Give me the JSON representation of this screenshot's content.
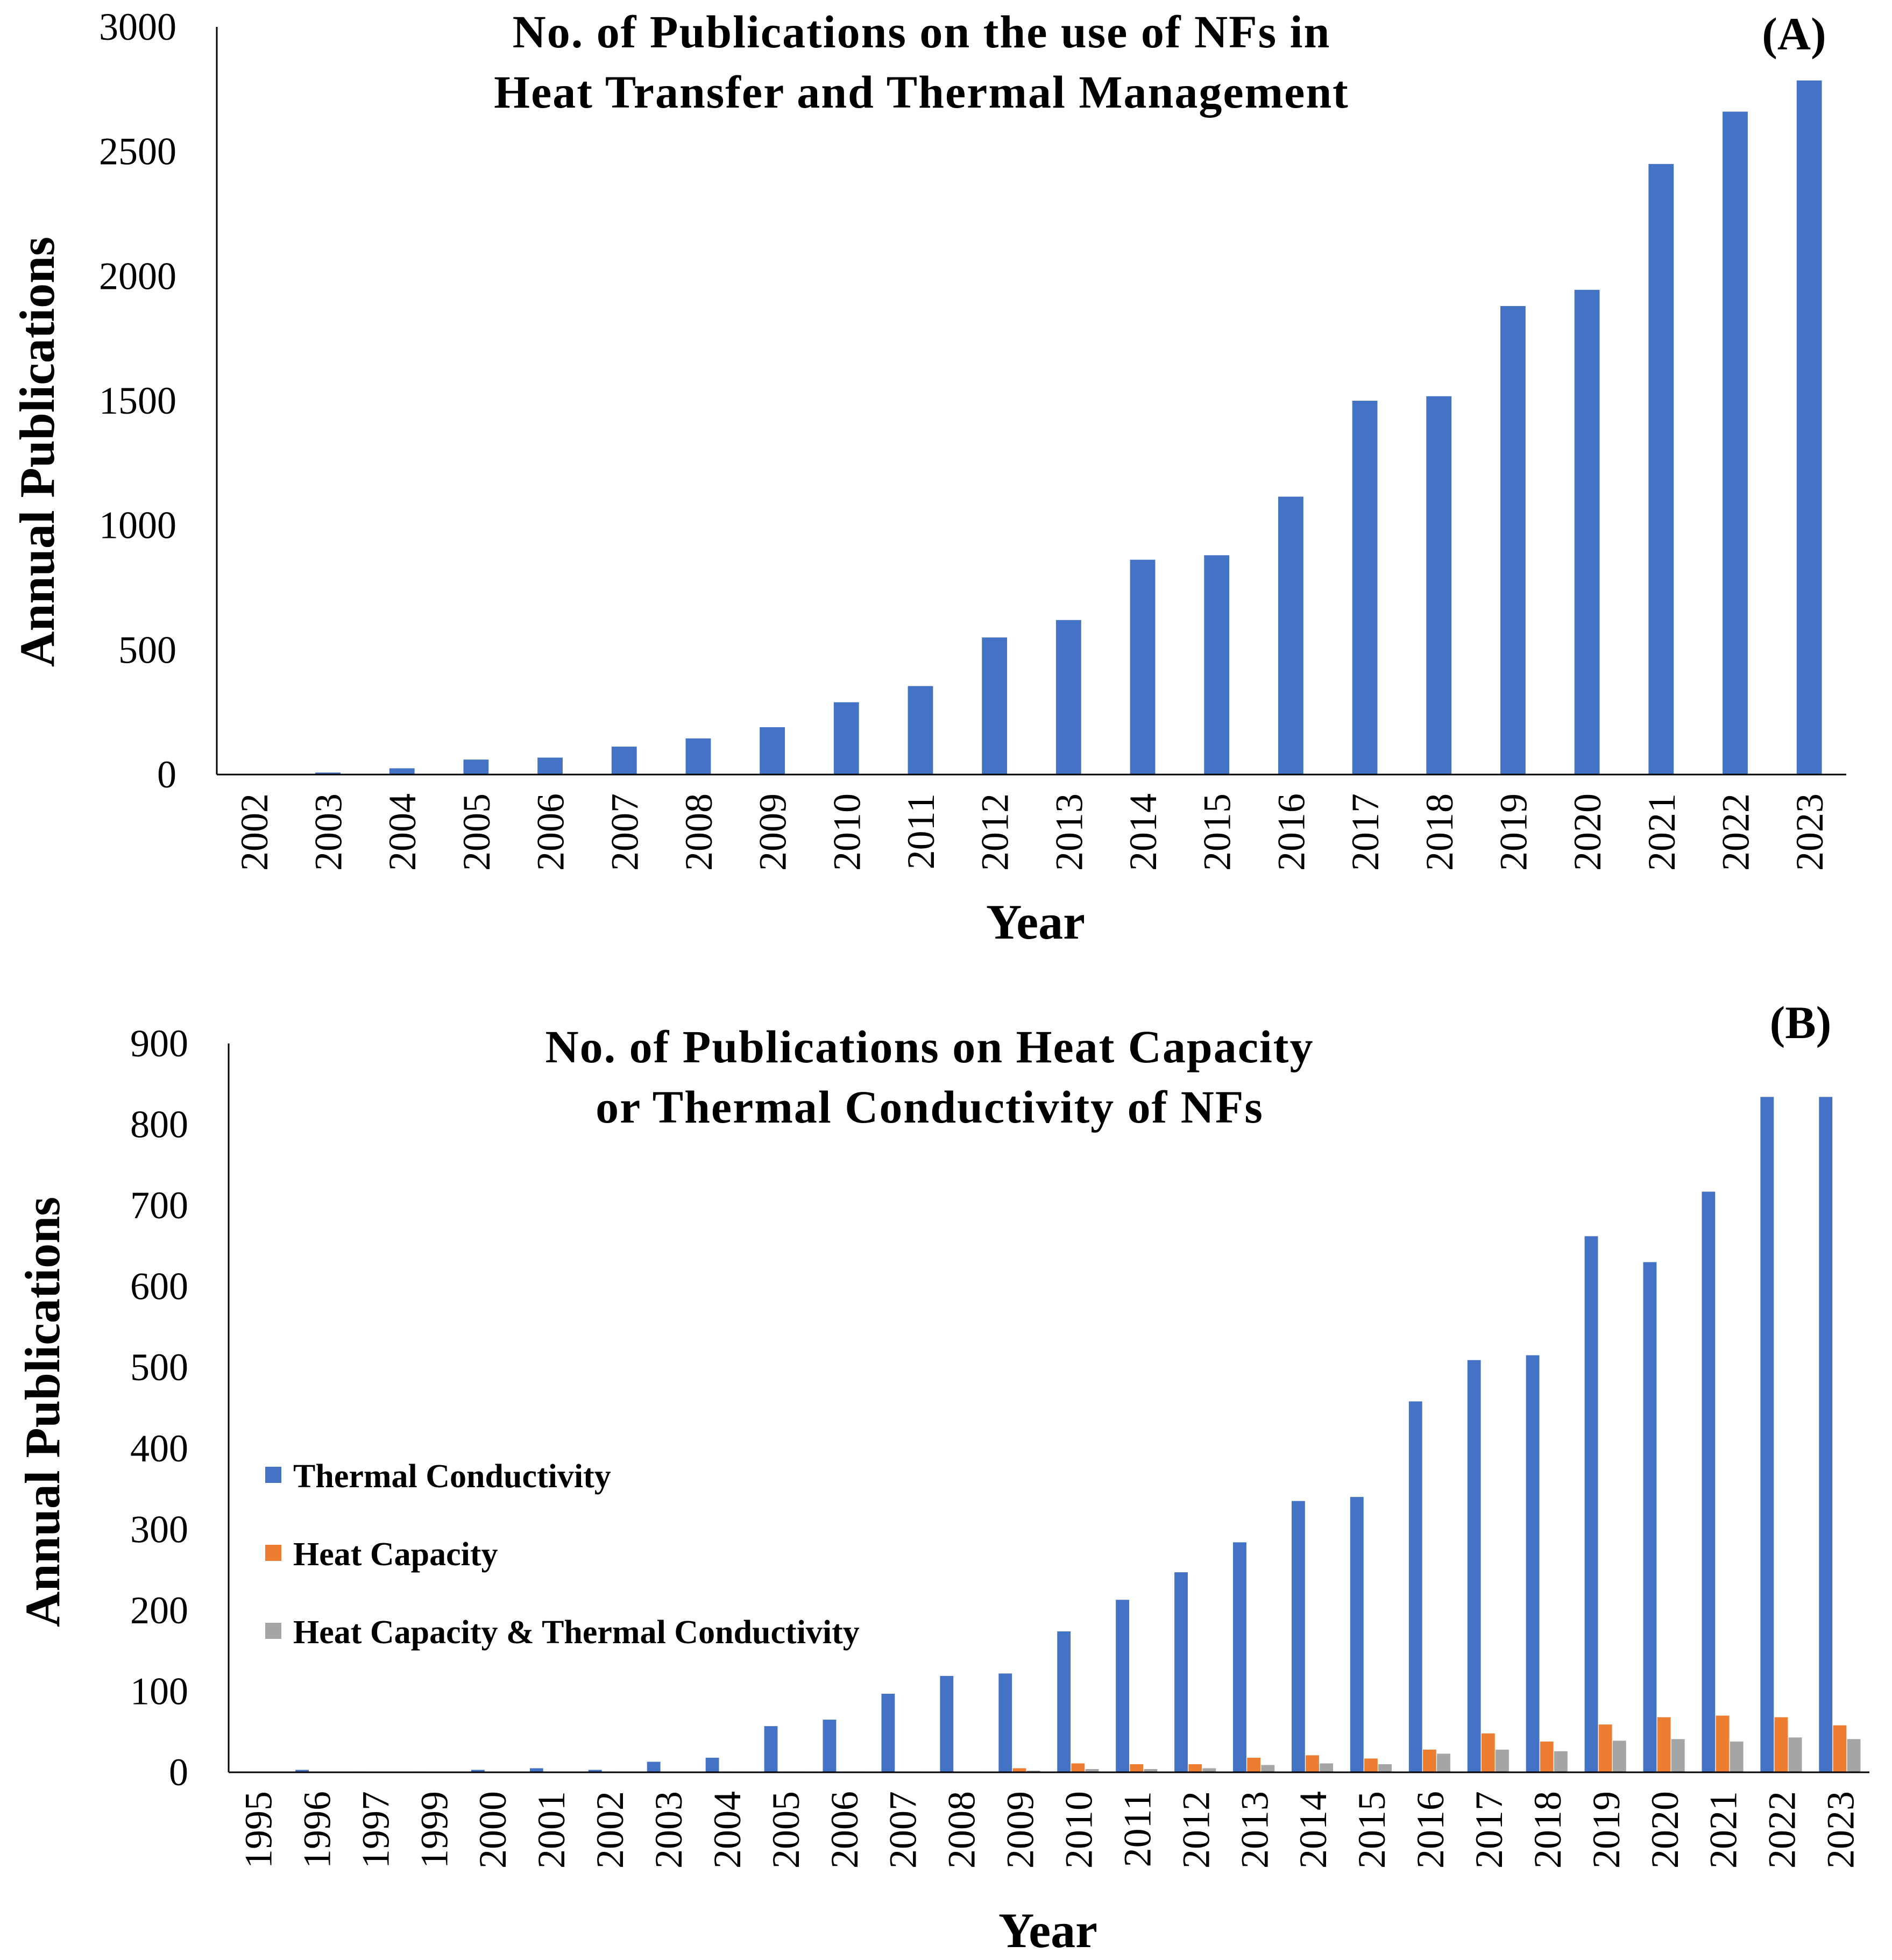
{
  "colors": {
    "thermal_conductivity": "#4472C4",
    "heat_capacity": "#ED7D31",
    "both": "#A5A5A5"
  },
  "chart_data": [
    {
      "type": "bar",
      "panel_label": "(A)",
      "title_line1": "No. of Publications on the use of NFs in",
      "title_line2": "Heat Transfer and Thermal Management",
      "xlabel": "Year",
      "ylabel": "Annual Publications",
      "ylim": [
        0,
        3000
      ],
      "yticks": [
        "0",
        "500",
        "1000",
        "1500",
        "2000",
        "2500",
        "3000"
      ],
      "categories": [
        "2002",
        "2003",
        "2004",
        "2005",
        "2006",
        "2007",
        "2008",
        "2009",
        "2010",
        "2011",
        "2012",
        "2013",
        "2014",
        "2015",
        "2016",
        "2017",
        "2018",
        "2019",
        "2020",
        "2021",
        "2022",
        "2023"
      ],
      "values": [
        2,
        8,
        25,
        60,
        68,
        112,
        145,
        190,
        290,
        355,
        550,
        620,
        862,
        880,
        1115,
        1500,
        1518,
        1880,
        1945,
        2450,
        2660,
        2785
      ]
    },
    {
      "type": "bar",
      "panel_label": "(B)",
      "title_line1": "No. of Publications on Heat Capacity",
      "title_line2": "or Thermal Conductivity of NFs",
      "xlabel": "Year",
      "ylabel": "Annual Publications",
      "ylim": [
        0,
        900
      ],
      "yticks": [
        "0",
        "100",
        "200",
        "300",
        "400",
        "500",
        "600",
        "700",
        "800",
        "900"
      ],
      "legend_position": "left",
      "categories": [
        "1995",
        "1996",
        "1997",
        "1999",
        "2000",
        "2001",
        "2002",
        "2003",
        "2004",
        "2005",
        "2006",
        "2007",
        "2008",
        "2009",
        "2010",
        "2011",
        "2012",
        "2013",
        "2014",
        "2015",
        "2016",
        "2017",
        "2018",
        "2019",
        "2020",
        "2021",
        "2022",
        "2023"
      ],
      "series": [
        {
          "name": "Thermal Conductivity",
          "color_key": "thermal_conductivity",
          "values": [
            1,
            3,
            1,
            1,
            3,
            5,
            3,
            13,
            18,
            57,
            65,
            97,
            119,
            122,
            174,
            213,
            247,
            284,
            335,
            340,
            458,
            509,
            515,
            662,
            630,
            717,
            834,
            834
          ]
        },
        {
          "name": "Heat Capacity",
          "color_key": "heat_capacity",
          "values": [
            0,
            0,
            0,
            0,
            0,
            0,
            1,
            0,
            1,
            1,
            1,
            1,
            1,
            5,
            11,
            10,
            10,
            18,
            21,
            17,
            28,
            48,
            38,
            59,
            68,
            70,
            68,
            58
          ]
        },
        {
          "name": "Heat Capacity & Thermal Conductivity",
          "color_key": "both",
          "values": [
            0,
            0,
            0,
            0,
            0,
            0,
            0,
            0,
            0,
            1,
            1,
            1,
            1,
            2,
            4,
            4,
            5,
            9,
            11,
            10,
            23,
            28,
            26,
            39,
            41,
            38,
            43,
            41
          ]
        }
      ]
    }
  ]
}
